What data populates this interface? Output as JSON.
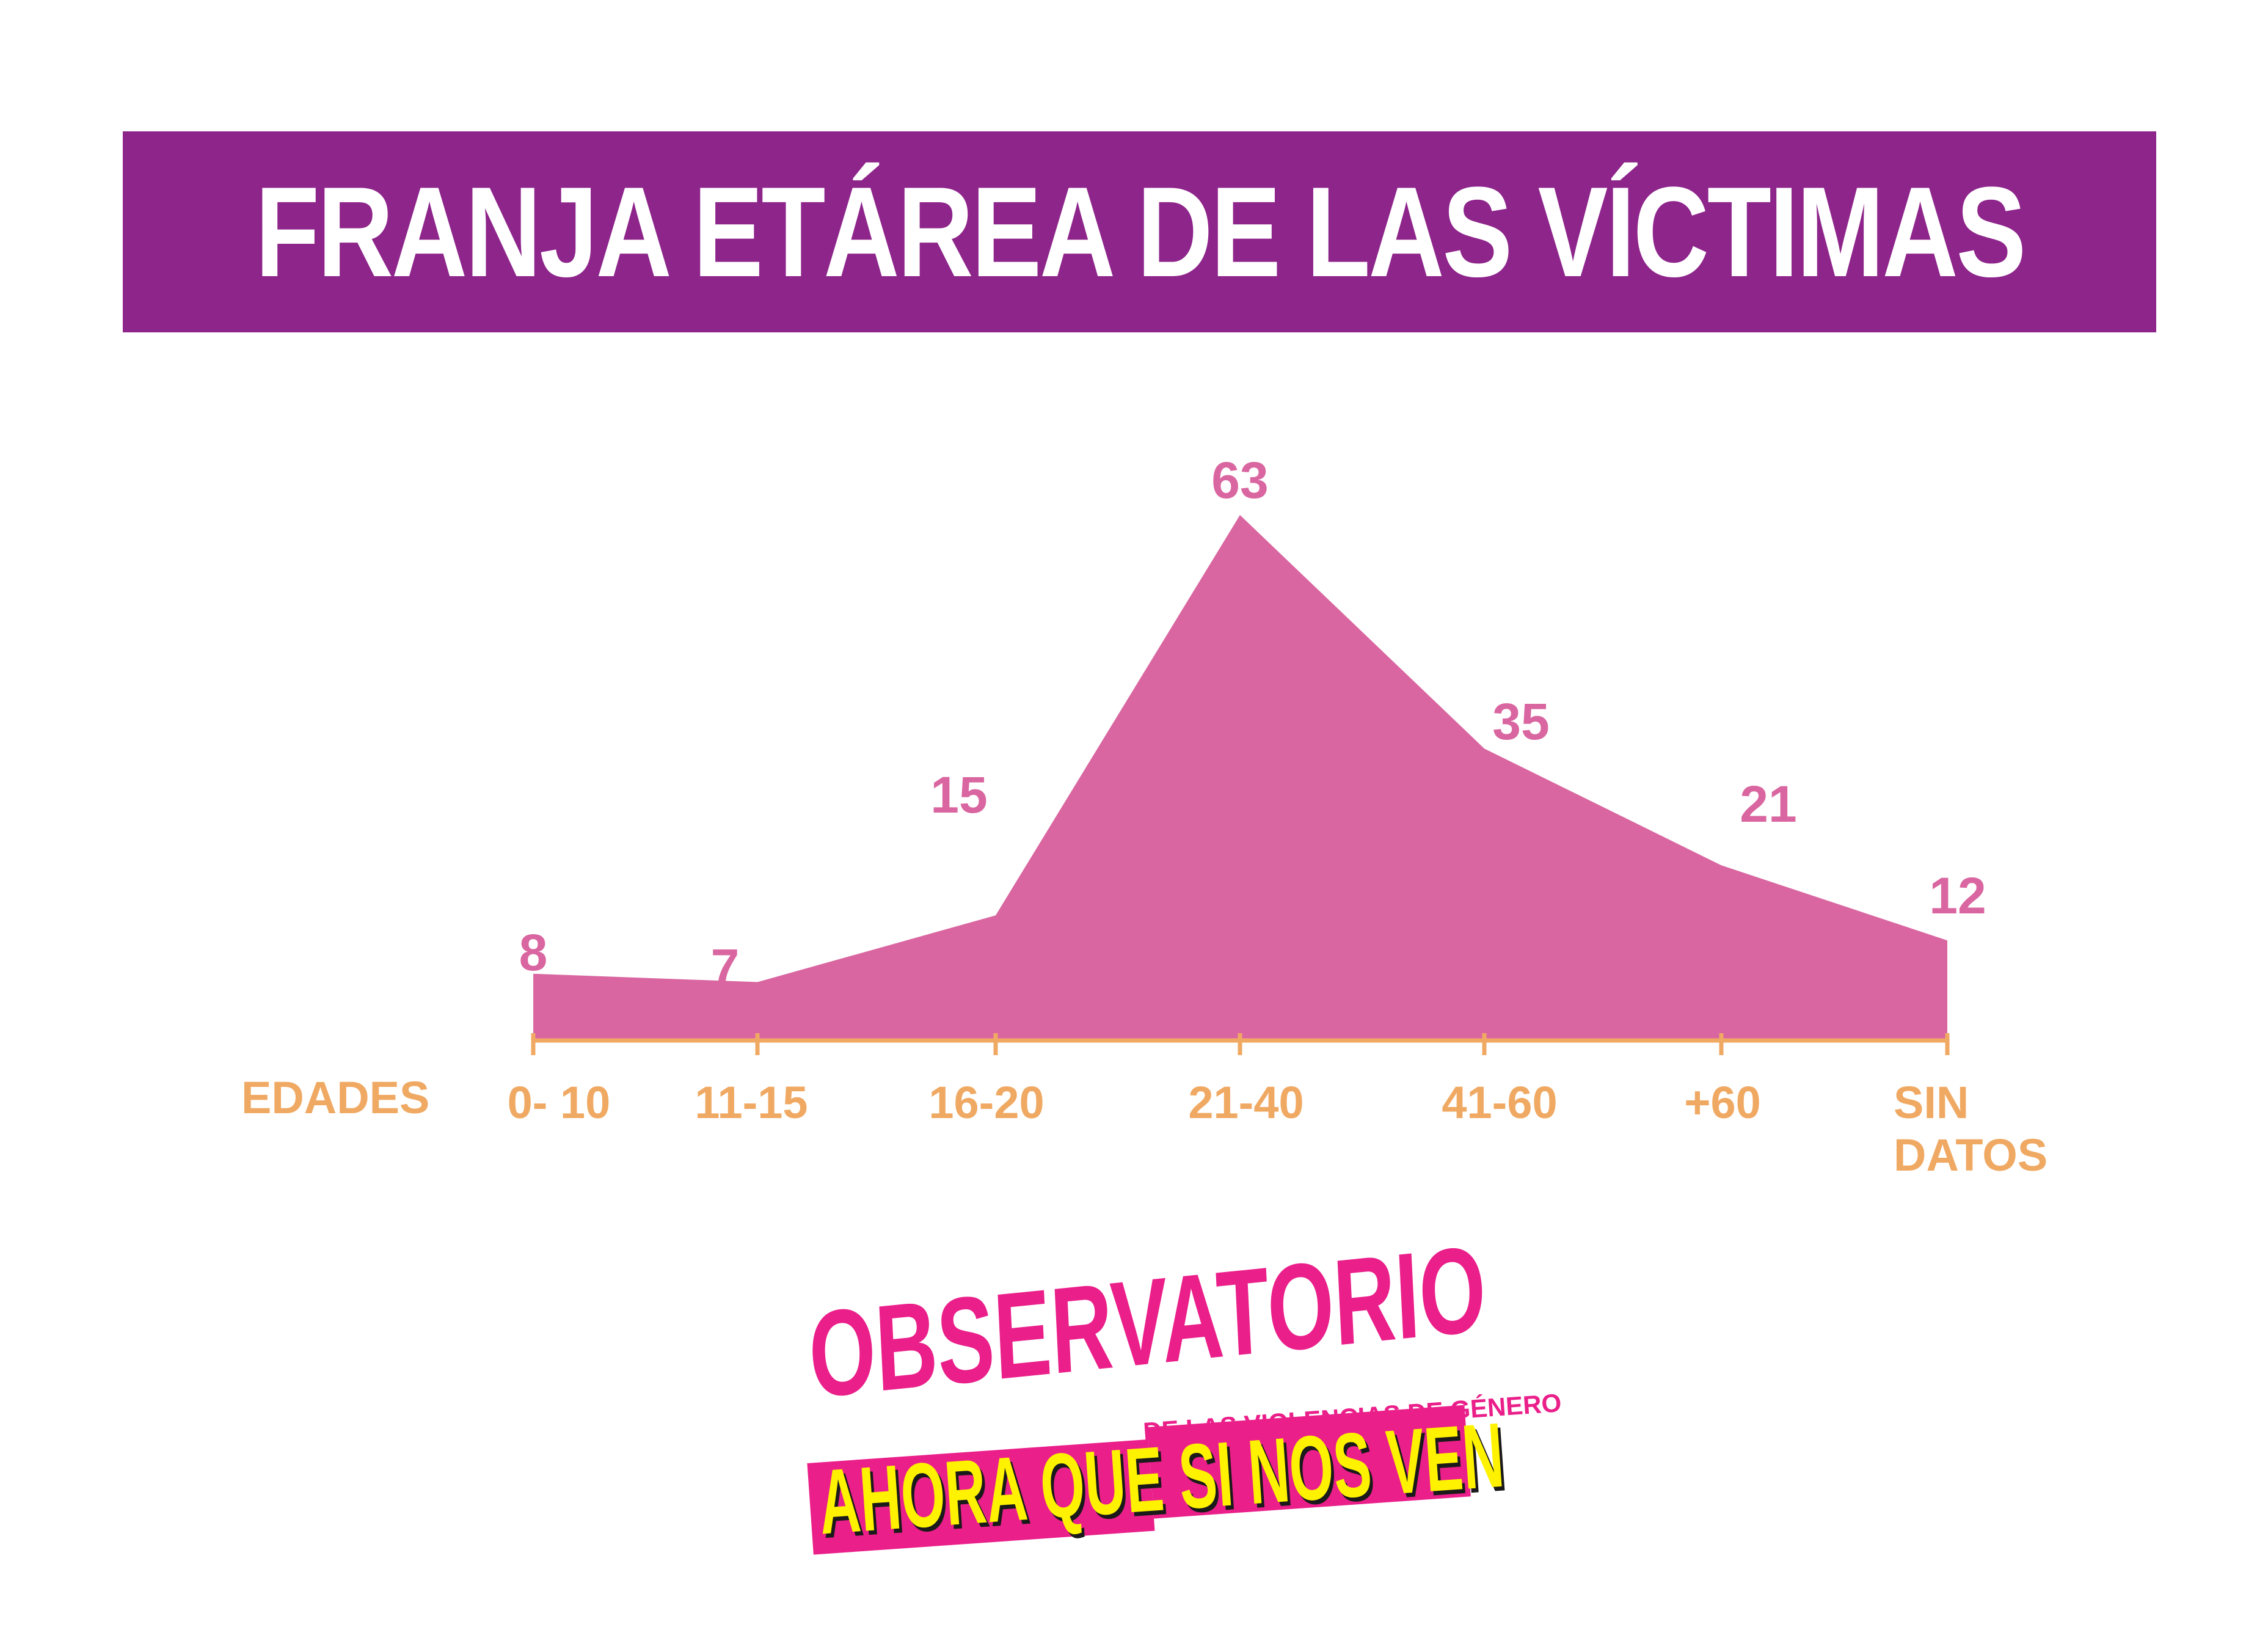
{
  "title": "FRANJA ETÁREA DE LAS VÍCTIMAS",
  "colors": {
    "banner": "#8e258b",
    "area": "#d966a0",
    "axis": "#f0a963",
    "logo_pink": "#ea1f8a",
    "logo_yellow": "#fff200"
  },
  "chart_data": {
    "type": "area",
    "xlabel": "EDADES",
    "categories": [
      "0- 10",
      "11-15",
      "16-20",
      "21-40",
      "41-60",
      "+60",
      "SIN DATOS"
    ],
    "values": [
      8,
      7,
      15,
      63,
      35,
      21,
      12
    ],
    "title": "",
    "grid": false,
    "legend": "none"
  },
  "logo": {
    "main": "OBSERVATORIO",
    "sub": "DE LAS VIOLENCIAS DE GÉNERO",
    "band": "AHORA QUE SI NOS VEN"
  }
}
